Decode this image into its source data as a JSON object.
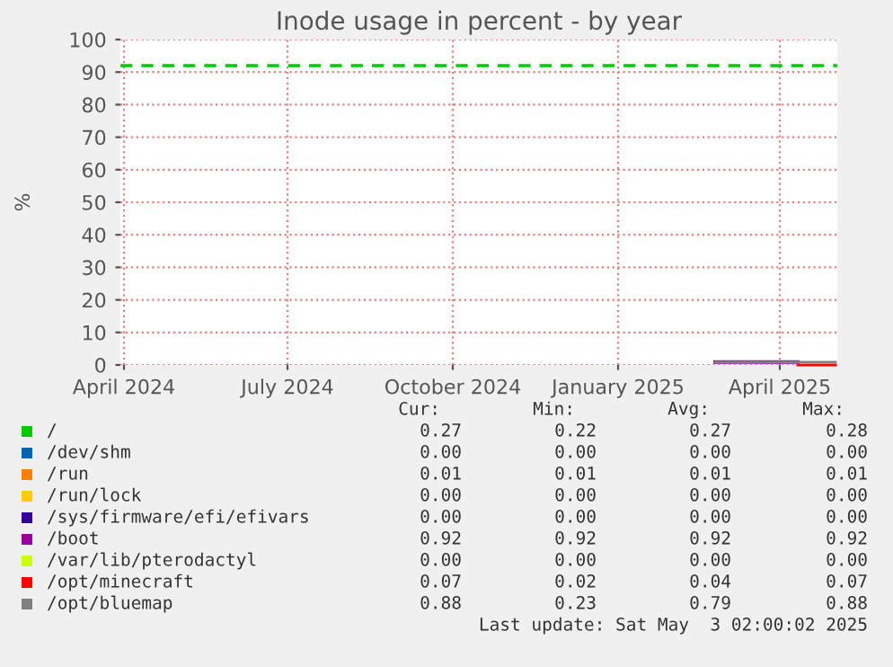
{
  "chart_data": {
    "type": "line",
    "title": "Inode usage in percent - by year",
    "ylabel": "%",
    "x": [
      "2025-02-24",
      "2025-03-15",
      "2025-04-11",
      "2025-05-02"
    ],
    "series": [
      {
        "name": "/",
        "color": "#00cc00",
        "values": [
          null,
          null,
          null,
          null
        ]
      },
      {
        "name": "/dev/shm",
        "color": "#0066b3",
        "values": [
          null,
          null,
          null,
          null
        ]
      },
      {
        "name": "/run",
        "color": "#ff8000",
        "values": [
          null,
          null,
          null,
          null
        ]
      },
      {
        "name": "/run/lock",
        "color": "#ffcc00",
        "values": [
          null,
          null,
          null,
          null
        ]
      },
      {
        "name": "/sys/firmware/efi/efivars",
        "color": "#330099",
        "values": [
          null,
          null,
          null,
          null
        ]
      },
      {
        "name": "/boot",
        "color": "#990099",
        "values": [
          0.9,
          0.9,
          0.9,
          null
        ]
      },
      {
        "name": "/var/lib/pterodactyl",
        "color": "#ccff00",
        "values": [
          null,
          null,
          null,
          null
        ]
      },
      {
        "name": "/opt/minecraft",
        "color": "#ff0000",
        "values": [
          null,
          null,
          0,
          0
        ]
      },
      {
        "name": "/opt/bluemap",
        "color": "#808080",
        "values": [
          0.9,
          0.9,
          0.9,
          0.9
        ]
      }
    ],
    "xlim": [
      "2024-03-30",
      "2025-05-03"
    ],
    "xticks": [
      {
        "value": "2024-04-01",
        "label": "April 2024"
      },
      {
        "value": "2024-07-01",
        "label": "July 2024"
      },
      {
        "value": "2024-10-01",
        "label": "October 2024"
      },
      {
        "value": "2025-01-01",
        "label": "January 2025"
      },
      {
        "value": "2025-04-01",
        "label": "April 2025"
      }
    ],
    "ylim": [
      0,
      100
    ],
    "yticks": [
      0,
      10,
      20,
      30,
      40,
      50,
      60,
      70,
      80,
      90,
      100
    ],
    "ref_lines": [
      {
        "axis": "y",
        "value": 92,
        "color": "#00cc00",
        "line_style": "dashed"
      }
    ],
    "grid": true,
    "legend": "bottom",
    "marker": "none",
    "line_style": "solid",
    "annotations": [
      "Cur:",
      "Min:",
      "Avg:",
      "Max:",
      "0.27",
      "0.22",
      "0.27",
      "0.28",
      "0.00",
      "0.00",
      "0.00",
      "0.00",
      "0.01",
      "0.01",
      "0.01",
      "0.01",
      "0.00",
      "0.00",
      "0.00",
      "0.00",
      "0.00",
      "0.00",
      "0.00",
      "0.00",
      "0.92",
      "0.92",
      "0.92",
      "0.92",
      "0.00",
      "0.00",
      "0.00",
      "0.00",
      "0.07",
      "0.02",
      "0.04",
      "0.07",
      "0.88",
      "0.23",
      "0.79",
      "0.88",
      "Last update: Sat May  3 02:00:02 2025"
    ]
  }
}
